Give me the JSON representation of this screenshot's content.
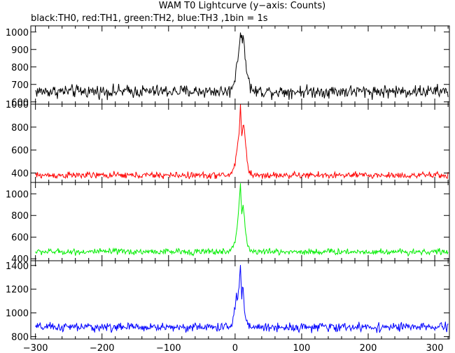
{
  "chart_data": {
    "type": "line",
    "title": "WAM T0 Lightcurve (y−axis: Counts)",
    "subtitle": "black:TH0, red:TH1, green:TH2, blue:TH3 ,1bin = 1s",
    "x_range": [
      -307,
      322
    ],
    "x_ticks": [
      -300,
      -200,
      -100,
      0,
      100,
      200,
      300
    ],
    "x_tick_labels": [
      "−300",
      "−200",
      "−100",
      "0",
      "100",
      "200",
      "300"
    ],
    "grid": false,
    "panels": [
      {
        "series_name": "TH0",
        "color": "#000000",
        "ylim": [
          587,
          1035
        ],
        "y_ticks": [
          600,
          700,
          800,
          900,
          1000
        ],
        "y_tick_labels": [
          "600",
          "700",
          "800",
          "900",
          "1000"
        ],
        "baseline": 660,
        "noise": 28,
        "peak_points": [
          [
            -8,
            660
          ],
          [
            -3,
            700
          ],
          [
            0,
            740
          ],
          [
            3,
            840
          ],
          [
            6,
            900
          ],
          [
            8,
            1010
          ],
          [
            10,
            930
          ],
          [
            12,
            990
          ],
          [
            14,
            900
          ],
          [
            16,
            840
          ],
          [
            18,
            780
          ],
          [
            20,
            720
          ],
          [
            24,
            680
          ],
          [
            28,
            660
          ]
        ]
      },
      {
        "series_name": "TH1",
        "color": "#ff0000",
        "ylim": [
          318,
          1000
        ],
        "y_ticks": [
          400,
          600,
          800,
          1000
        ],
        "y_tick_labels": [
          "400",
          "600",
          "800",
          "1000"
        ],
        "baseline": 380,
        "noise": 22,
        "peak_points": [
          [
            -8,
            385
          ],
          [
            -3,
            430
          ],
          [
            0,
            480
          ],
          [
            3,
            620
          ],
          [
            6,
            760
          ],
          [
            8,
            990
          ],
          [
            10,
            720
          ],
          [
            12,
            820
          ],
          [
            14,
            780
          ],
          [
            16,
            640
          ],
          [
            18,
            520
          ],
          [
            20,
            430
          ],
          [
            24,
            395
          ],
          [
            28,
            380
          ]
        ]
      },
      {
        "series_name": "TH2",
        "color": "#00ee00",
        "ylim": [
          382,
          1105
        ],
        "y_ticks": [
          400,
          600,
          800,
          1000
        ],
        "y_tick_labels": [
          "400",
          "600",
          "800",
          "1000"
        ],
        "baseline": 465,
        "noise": 22,
        "peak_points": [
          [
            -8,
            470
          ],
          [
            -3,
            520
          ],
          [
            0,
            560
          ],
          [
            3,
            700
          ],
          [
            6,
            900
          ],
          [
            8,
            1100
          ],
          [
            10,
            820
          ],
          [
            12,
            900
          ],
          [
            14,
            780
          ],
          [
            16,
            640
          ],
          [
            18,
            560
          ],
          [
            20,
            500
          ],
          [
            24,
            475
          ],
          [
            28,
            465
          ]
        ]
      },
      {
        "series_name": "TH3",
        "color": "#0000ff",
        "ylim": [
          780,
          1440
        ],
        "y_ticks": [
          800,
          1000,
          1200,
          1400
        ],
        "y_tick_labels": [
          "800",
          "1000",
          "1200",
          "1400"
        ],
        "baseline": 880,
        "noise": 28,
        "peak_points": [
          [
            -8,
            885
          ],
          [
            -3,
            940
          ],
          [
            0,
            1040
          ],
          [
            2,
            1150
          ],
          [
            4,
            1100
          ],
          [
            6,
            1220
          ],
          [
            8,
            1440
          ],
          [
            10,
            1100
          ],
          [
            12,
            1250
          ],
          [
            14,
            1000
          ],
          [
            16,
            960
          ],
          [
            18,
            920
          ],
          [
            22,
            890
          ],
          [
            28,
            880
          ]
        ]
      }
    ]
  }
}
